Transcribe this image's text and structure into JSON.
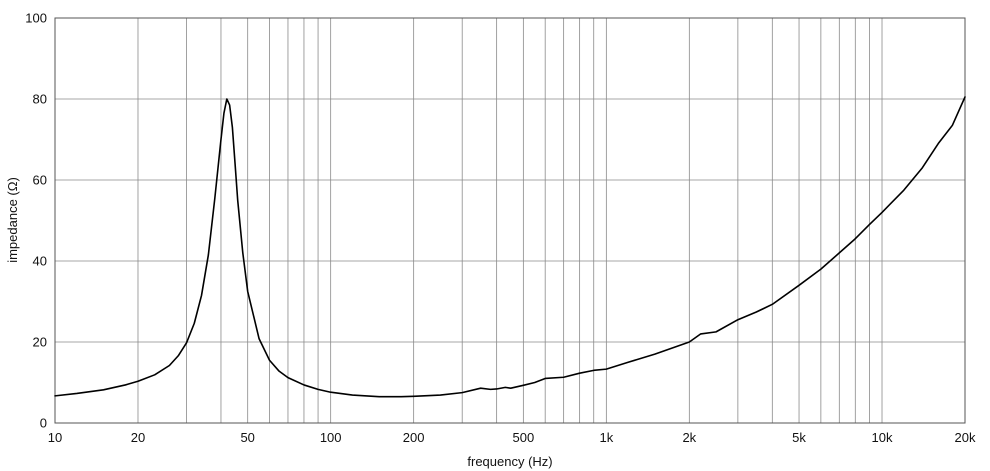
{
  "chart_data": {
    "type": "line",
    "title": "",
    "xlabel": "frequency (Hz)",
    "ylabel": "impedance (Ω)",
    "xscale": "log",
    "xlim": [
      10,
      20000
    ],
    "ylim": [
      0,
      100
    ],
    "grid": true,
    "x_ticks": [
      10,
      20,
      50,
      100,
      200,
      500,
      1000,
      2000,
      5000,
      10000,
      20000
    ],
    "x_tick_labels": [
      "10",
      "20",
      "50",
      "100",
      "200",
      "500",
      "1k",
      "2k",
      "5k",
      "10k",
      "20k"
    ],
    "y_ticks": [
      0,
      20,
      40,
      60,
      80,
      100
    ],
    "y_tick_labels": [
      "0",
      "20",
      "40",
      "60",
      "80",
      "100"
    ],
    "x_gridlines": [
      10,
      20,
      30,
      40,
      50,
      60,
      70,
      80,
      90,
      100,
      200,
      300,
      400,
      500,
      600,
      700,
      800,
      900,
      1000,
      2000,
      3000,
      4000,
      5000,
      6000,
      7000,
      8000,
      9000,
      10000,
      20000
    ],
    "series": [
      {
        "color": "#000000",
        "x": [
          10,
          12,
          15,
          18,
          20,
          23,
          26,
          28,
          30,
          32,
          34,
          36,
          38,
          40,
          41,
          42,
          43,
          44,
          45,
          46,
          48,
          50,
          55,
          60,
          65,
          70,
          80,
          90,
          100,
          120,
          150,
          180,
          200,
          250,
          300,
          350,
          380,
          400,
          430,
          450,
          500,
          550,
          600,
          700,
          800,
          900,
          1000,
          1200,
          1500,
          2000,
          2200,
          2500,
          3000,
          3500,
          4000,
          5000,
          6000,
          7000,
          8000,
          9000,
          10000,
          12000,
          14000,
          16000,
          18000,
          20000
        ],
        "y": [
          6.7,
          7.3,
          8.2,
          9.4,
          10.3,
          11.9,
          14.2,
          16.6,
          19.8,
          24.6,
          31.5,
          41.5,
          55.5,
          70.0,
          76.5,
          80.0,
          78.5,
          73.0,
          64.0,
          55.0,
          42.0,
          32.5,
          20.8,
          15.5,
          12.8,
          11.2,
          9.4,
          8.3,
          7.6,
          6.9,
          6.5,
          6.5,
          6.6,
          6.9,
          7.5,
          8.6,
          8.3,
          8.4,
          8.8,
          8.6,
          9.3,
          10.0,
          11.0,
          11.3,
          12.3,
          13.0,
          13.3,
          15.0,
          17.0,
          20.0,
          22.0,
          22.5,
          25.5,
          27.4,
          29.3,
          34.0,
          38.0,
          42.0,
          45.5,
          49.0,
          52.0,
          57.5,
          63.0,
          69.0,
          73.5,
          80.5
        ]
      }
    ]
  }
}
